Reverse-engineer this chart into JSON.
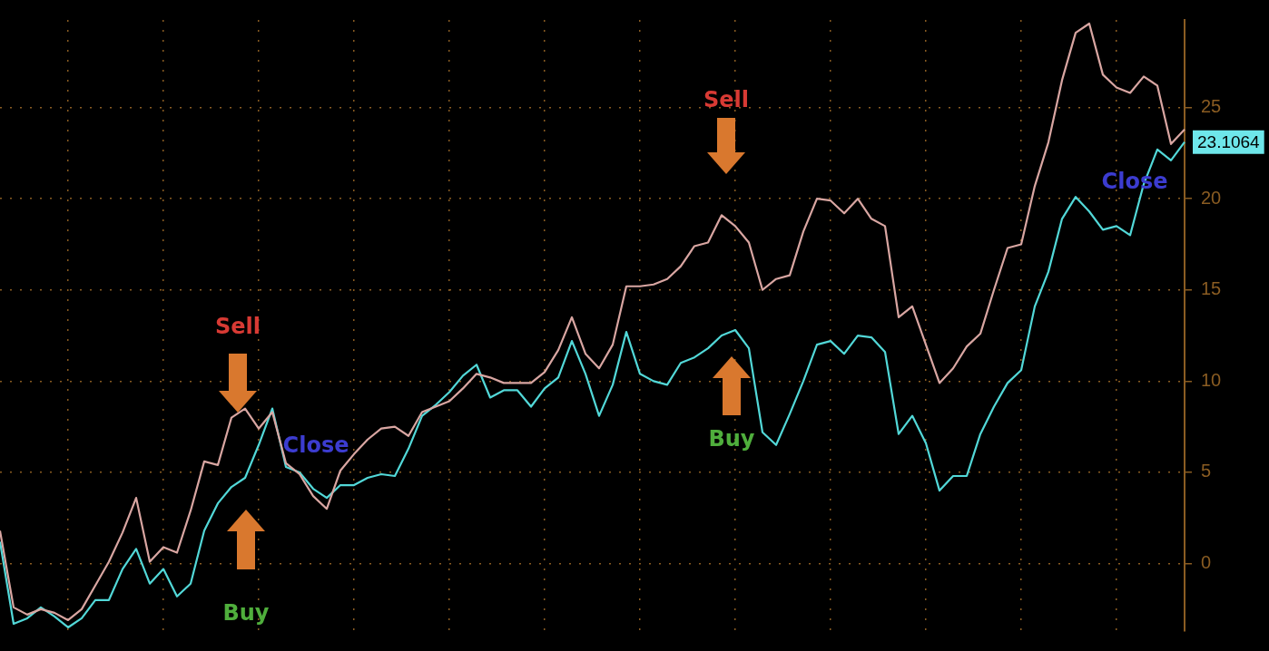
{
  "chart_data": {
    "type": "line",
    "tick_labels": "y",
    "grid": true,
    "legend": false,
    "marker": "none",
    "line_style": "solid",
    "categories": [
      null,
      null,
      null,
      null,
      null,
      null,
      null,
      null,
      null,
      null,
      null,
      null,
      null,
      null,
      null,
      null,
      null,
      null,
      null,
      null,
      null,
      null,
      null,
      null,
      null,
      null,
      null,
      null,
      null,
      null,
      null,
      null,
      null,
      null,
      null,
      null,
      null,
      null,
      null,
      null,
      null,
      null,
      null,
      null,
      null,
      null,
      null,
      null,
      null,
      null,
      null,
      null,
      null,
      null,
      null,
      null,
      null,
      null,
      null,
      null,
      null,
      null,
      null,
      null,
      null,
      null,
      null,
      null,
      null,
      null,
      null,
      null,
      null,
      null,
      null,
      null,
      null,
      null,
      null,
      null,
      null,
      null,
      null,
      null,
      null,
      null,
      null,
      null
    ],
    "ylim": [
      -3.7,
      29.8
    ],
    "yticks": [
      0,
      5,
      10,
      15,
      20,
      25
    ],
    "series": [
      {
        "color": "#d9a6a2",
        "values": [
          1.8,
          -2.4,
          -2.8,
          -2.5,
          -2.7,
          -3.1,
          -2.5,
          -1.2,
          0.1,
          1.7,
          3.6,
          0.1,
          0.9,
          0.6,
          2.9,
          5.6,
          5.4,
          8.0,
          8.5,
          7.4,
          8.3,
          5.5,
          4.9,
          3.7,
          3.0,
          5.1,
          6.0,
          6.8,
          7.4,
          7.5,
          7.0,
          8.3,
          8.6,
          8.9,
          9.6,
          10.4,
          10.2,
          9.9,
          9.9,
          9.9,
          10.5,
          11.7,
          13.5,
          11.5,
          10.7,
          12.0,
          15.2,
          15.2,
          15.3,
          15.6,
          16.3,
          17.4,
          17.6,
          19.1,
          18.5,
          17.6,
          15.0,
          15.6,
          15.8,
          18.2,
          20.0,
          19.9,
          19.2,
          20.0,
          18.9,
          18.5,
          13.5,
          14.1,
          12.0,
          9.9,
          10.7,
          11.9,
          12.6,
          15.0,
          17.3,
          17.5,
          20.7,
          23.1,
          26.5,
          29.1,
          29.6,
          26.8,
          26.1,
          25.8,
          26.7,
          26.2,
          23.0,
          23.8
        ]
      },
      {
        "color": "#52d8d8",
        "values": [
          1.2,
          -3.3,
          -3.0,
          -2.4,
          -2.9,
          -3.5,
          -3.0,
          -2.0,
          -2.0,
          -0.3,
          0.8,
          -1.1,
          -0.3,
          -1.8,
          -1.1,
          1.8,
          3.3,
          4.2,
          4.7,
          6.5,
          8.5,
          5.3,
          5.0,
          4.1,
          3.6,
          4.3,
          4.3,
          4.7,
          4.9,
          4.8,
          6.3,
          8.1,
          8.7,
          9.4,
          10.3,
          10.9,
          9.1,
          9.5,
          9.5,
          8.6,
          9.6,
          10.2,
          12.2,
          10.4,
          8.1,
          9.8,
          12.7,
          10.4,
          10.0,
          9.8,
          11.0,
          11.3,
          11.8,
          12.5,
          12.8,
          11.8,
          7.2,
          6.5,
          8.2,
          10.0,
          12.0,
          12.2,
          11.5,
          12.5,
          12.4,
          11.6,
          7.1,
          8.1,
          6.6,
          4.0,
          4.8,
          4.8,
          7.1,
          8.6,
          9.9,
          10.6,
          14.1,
          16.0,
          18.9,
          20.1,
          19.3,
          18.3,
          18.5,
          18.0,
          20.8,
          22.7,
          22.1,
          23.1064
        ]
      }
    ],
    "annotations": [
      "Sell",
      "Buy",
      "Close",
      "Sell",
      "Buy",
      "Close",
      "23.1064"
    ]
  }
}
